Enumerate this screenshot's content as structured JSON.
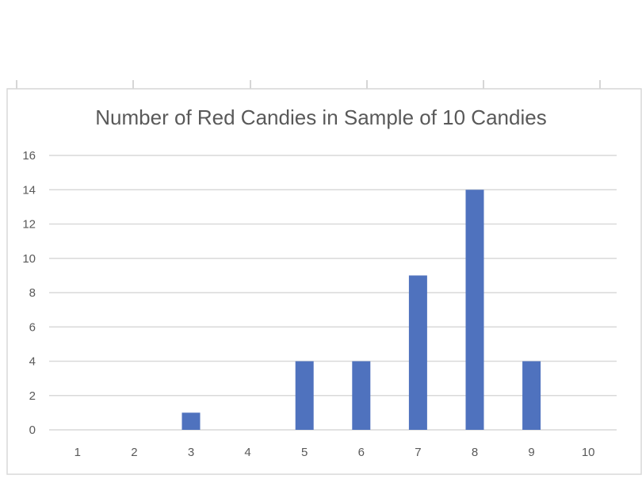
{
  "chart_data": {
    "type": "bar",
    "title": "Number of Red Candies in Sample of 10 Candies",
    "xlabel": "",
    "ylabel": "",
    "categories": [
      "1",
      "2",
      "3",
      "4",
      "5",
      "6",
      "7",
      "8",
      "9",
      "10"
    ],
    "values": [
      0,
      0,
      1,
      0,
      4,
      4,
      9,
      14,
      4,
      0
    ],
    "ylim": [
      0,
      16
    ],
    "yticks": [
      "0",
      "2",
      "4",
      "6",
      "8",
      "10",
      "12",
      "14",
      "16"
    ],
    "grid": true,
    "legend": "none",
    "bar_color": "#4F72BE",
    "gridline_color": "#D9D9D9",
    "text_color": "#595959"
  }
}
